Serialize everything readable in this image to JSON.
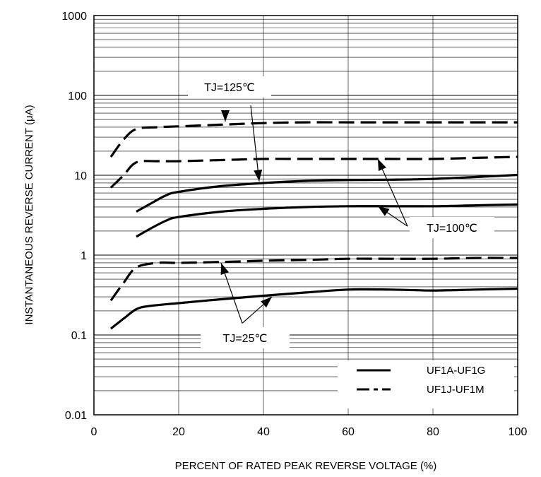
{
  "chart_data": {
    "type": "line",
    "xlabel": "PERCENT OF RATED PEAK REVERSE VOLTAGE (%)",
    "ylabel": "INSTANTANEOUS REVERSE CURRENT (μA)",
    "xlim": [
      0,
      100
    ],
    "ylim": [
      0.01,
      1000
    ],
    "y_scale": "log",
    "grid": true,
    "x_ticks": [
      "0",
      "20",
      "40",
      "60",
      "80",
      "100"
    ],
    "y_ticks": [
      "0.01",
      "0.1",
      "1",
      "10",
      "100",
      "1000"
    ],
    "legend_position": "bottom-right",
    "series": [
      {
        "name": "UF1A-UF1G",
        "style": "solid",
        "temperature": "TJ=125℃",
        "x": [
          10,
          13,
          17,
          20,
          30,
          40,
          50,
          60,
          70,
          80,
          90,
          100
        ],
        "y": [
          3.5,
          4.3,
          5.6,
          6.2,
          7.3,
          8.0,
          8.5,
          8.7,
          8.8,
          9.0,
          9.5,
          10.1
        ]
      },
      {
        "name": "UF1A-UF1G",
        "style": "solid",
        "temperature": "TJ=100℃",
        "x": [
          10,
          13,
          17,
          20,
          30,
          40,
          50,
          60,
          70,
          80,
          90,
          100
        ],
        "y": [
          1.7,
          2.1,
          2.7,
          3.0,
          3.5,
          3.8,
          4.0,
          4.1,
          4.1,
          4.1,
          4.2,
          4.3
        ]
      },
      {
        "name": "UF1A-UF1G",
        "style": "solid",
        "temperature": "TJ=25℃",
        "x": [
          4,
          7,
          10,
          13,
          20,
          30,
          40,
          50,
          60,
          70,
          80,
          90,
          100
        ],
        "y": [
          0.12,
          0.16,
          0.21,
          0.23,
          0.25,
          0.28,
          0.31,
          0.34,
          0.37,
          0.37,
          0.36,
          0.37,
          0.38
        ]
      },
      {
        "name": "UF1J-UF1M",
        "style": "dashed",
        "temperature": "TJ=125℃",
        "x": [
          4,
          7,
          10,
          15,
          20,
          30,
          40,
          50,
          60,
          70,
          80,
          90,
          100
        ],
        "y": [
          17,
          28,
          38,
          40,
          41,
          43,
          45,
          46,
          46,
          46,
          46,
          46,
          46
        ]
      },
      {
        "name": "UF1J-UF1M",
        "style": "dashed",
        "temperature": "TJ=100℃",
        "x": [
          4,
          7,
          10,
          15,
          20,
          30,
          40,
          50,
          60,
          70,
          80,
          90,
          100
        ],
        "y": [
          7,
          10,
          14.5,
          15,
          15,
          15.5,
          16,
          16,
          16,
          16,
          16,
          16.5,
          17
        ]
      },
      {
        "name": "UF1J-UF1M",
        "style": "dashed",
        "temperature": "TJ=25℃",
        "x": [
          4,
          7,
          10,
          15,
          20,
          30,
          40,
          50,
          60,
          70,
          80,
          90,
          100
        ],
        "y": [
          0.27,
          0.45,
          0.7,
          0.8,
          0.8,
          0.82,
          0.85,
          0.87,
          0.9,
          0.9,
          0.9,
          0.92,
          0.92
        ]
      }
    ],
    "annotations": [
      {
        "text": "TJ=125℃",
        "arrows": [
          {
            "from_x": 31,
            "from_y": 62,
            "to_x": 31,
            "to_y": 47
          },
          {
            "from_x": 37,
            "from_y": 75,
            "to_x": 39,
            "to_y": 8.4
          }
        ]
      },
      {
        "text": "TJ=100℃",
        "arrows": [
          {
            "from_x": 74,
            "from_y": 2.3,
            "to_x": 67,
            "to_y": 16
          },
          {
            "from_x": 74,
            "from_y": 2.3,
            "to_x": 67,
            "to_y": 4.1
          }
        ]
      },
      {
        "text": "TJ=25℃",
        "arrows": [
          {
            "from_x": 35,
            "from_y": 0.14,
            "to_x": 30,
            "to_y": 0.8
          },
          {
            "from_x": 35,
            "from_y": 0.14,
            "to_x": 42,
            "to_y": 0.3
          }
        ]
      }
    ],
    "legend": [
      {
        "label": "UF1A-UF1G",
        "style": "solid"
      },
      {
        "label": "UF1J-UF1M",
        "style": "dashed"
      }
    ]
  }
}
